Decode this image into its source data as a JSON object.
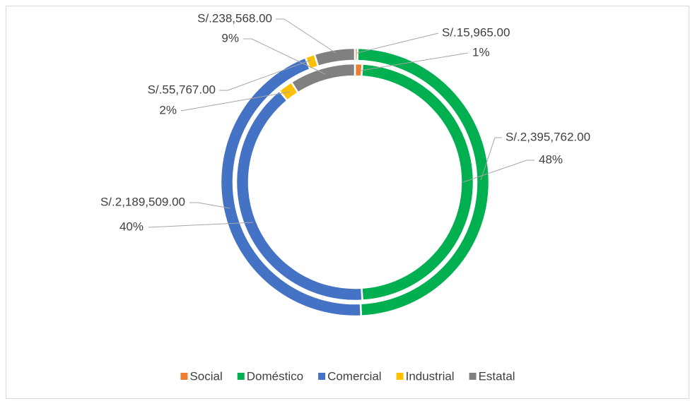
{
  "chart_data": {
    "type": "doughnut",
    "categories": [
      "Social",
      "Doméstico",
      "Comercial",
      "Industrial",
      "Estatal"
    ],
    "colors": [
      "#ed7d31",
      "#00b050",
      "#4472c4",
      "#ffc000",
      "#808080"
    ],
    "series": [
      {
        "values": [
          15965,
          2395762,
          2189509,
          55767,
          238568
        ],
        "value_labels": [
          "S/.15,965.00",
          "S/.2,395,762.00",
          "S/.2,189,509.00",
          "S/.55,767.00",
          "S/.238,568.00"
        ]
      },
      {
        "values": [
          1,
          48,
          40,
          2,
          9
        ],
        "value_labels": [
          "1%",
          "48%",
          "40%",
          "2%",
          "9%"
        ]
      }
    ],
    "legend": "bottom"
  }
}
